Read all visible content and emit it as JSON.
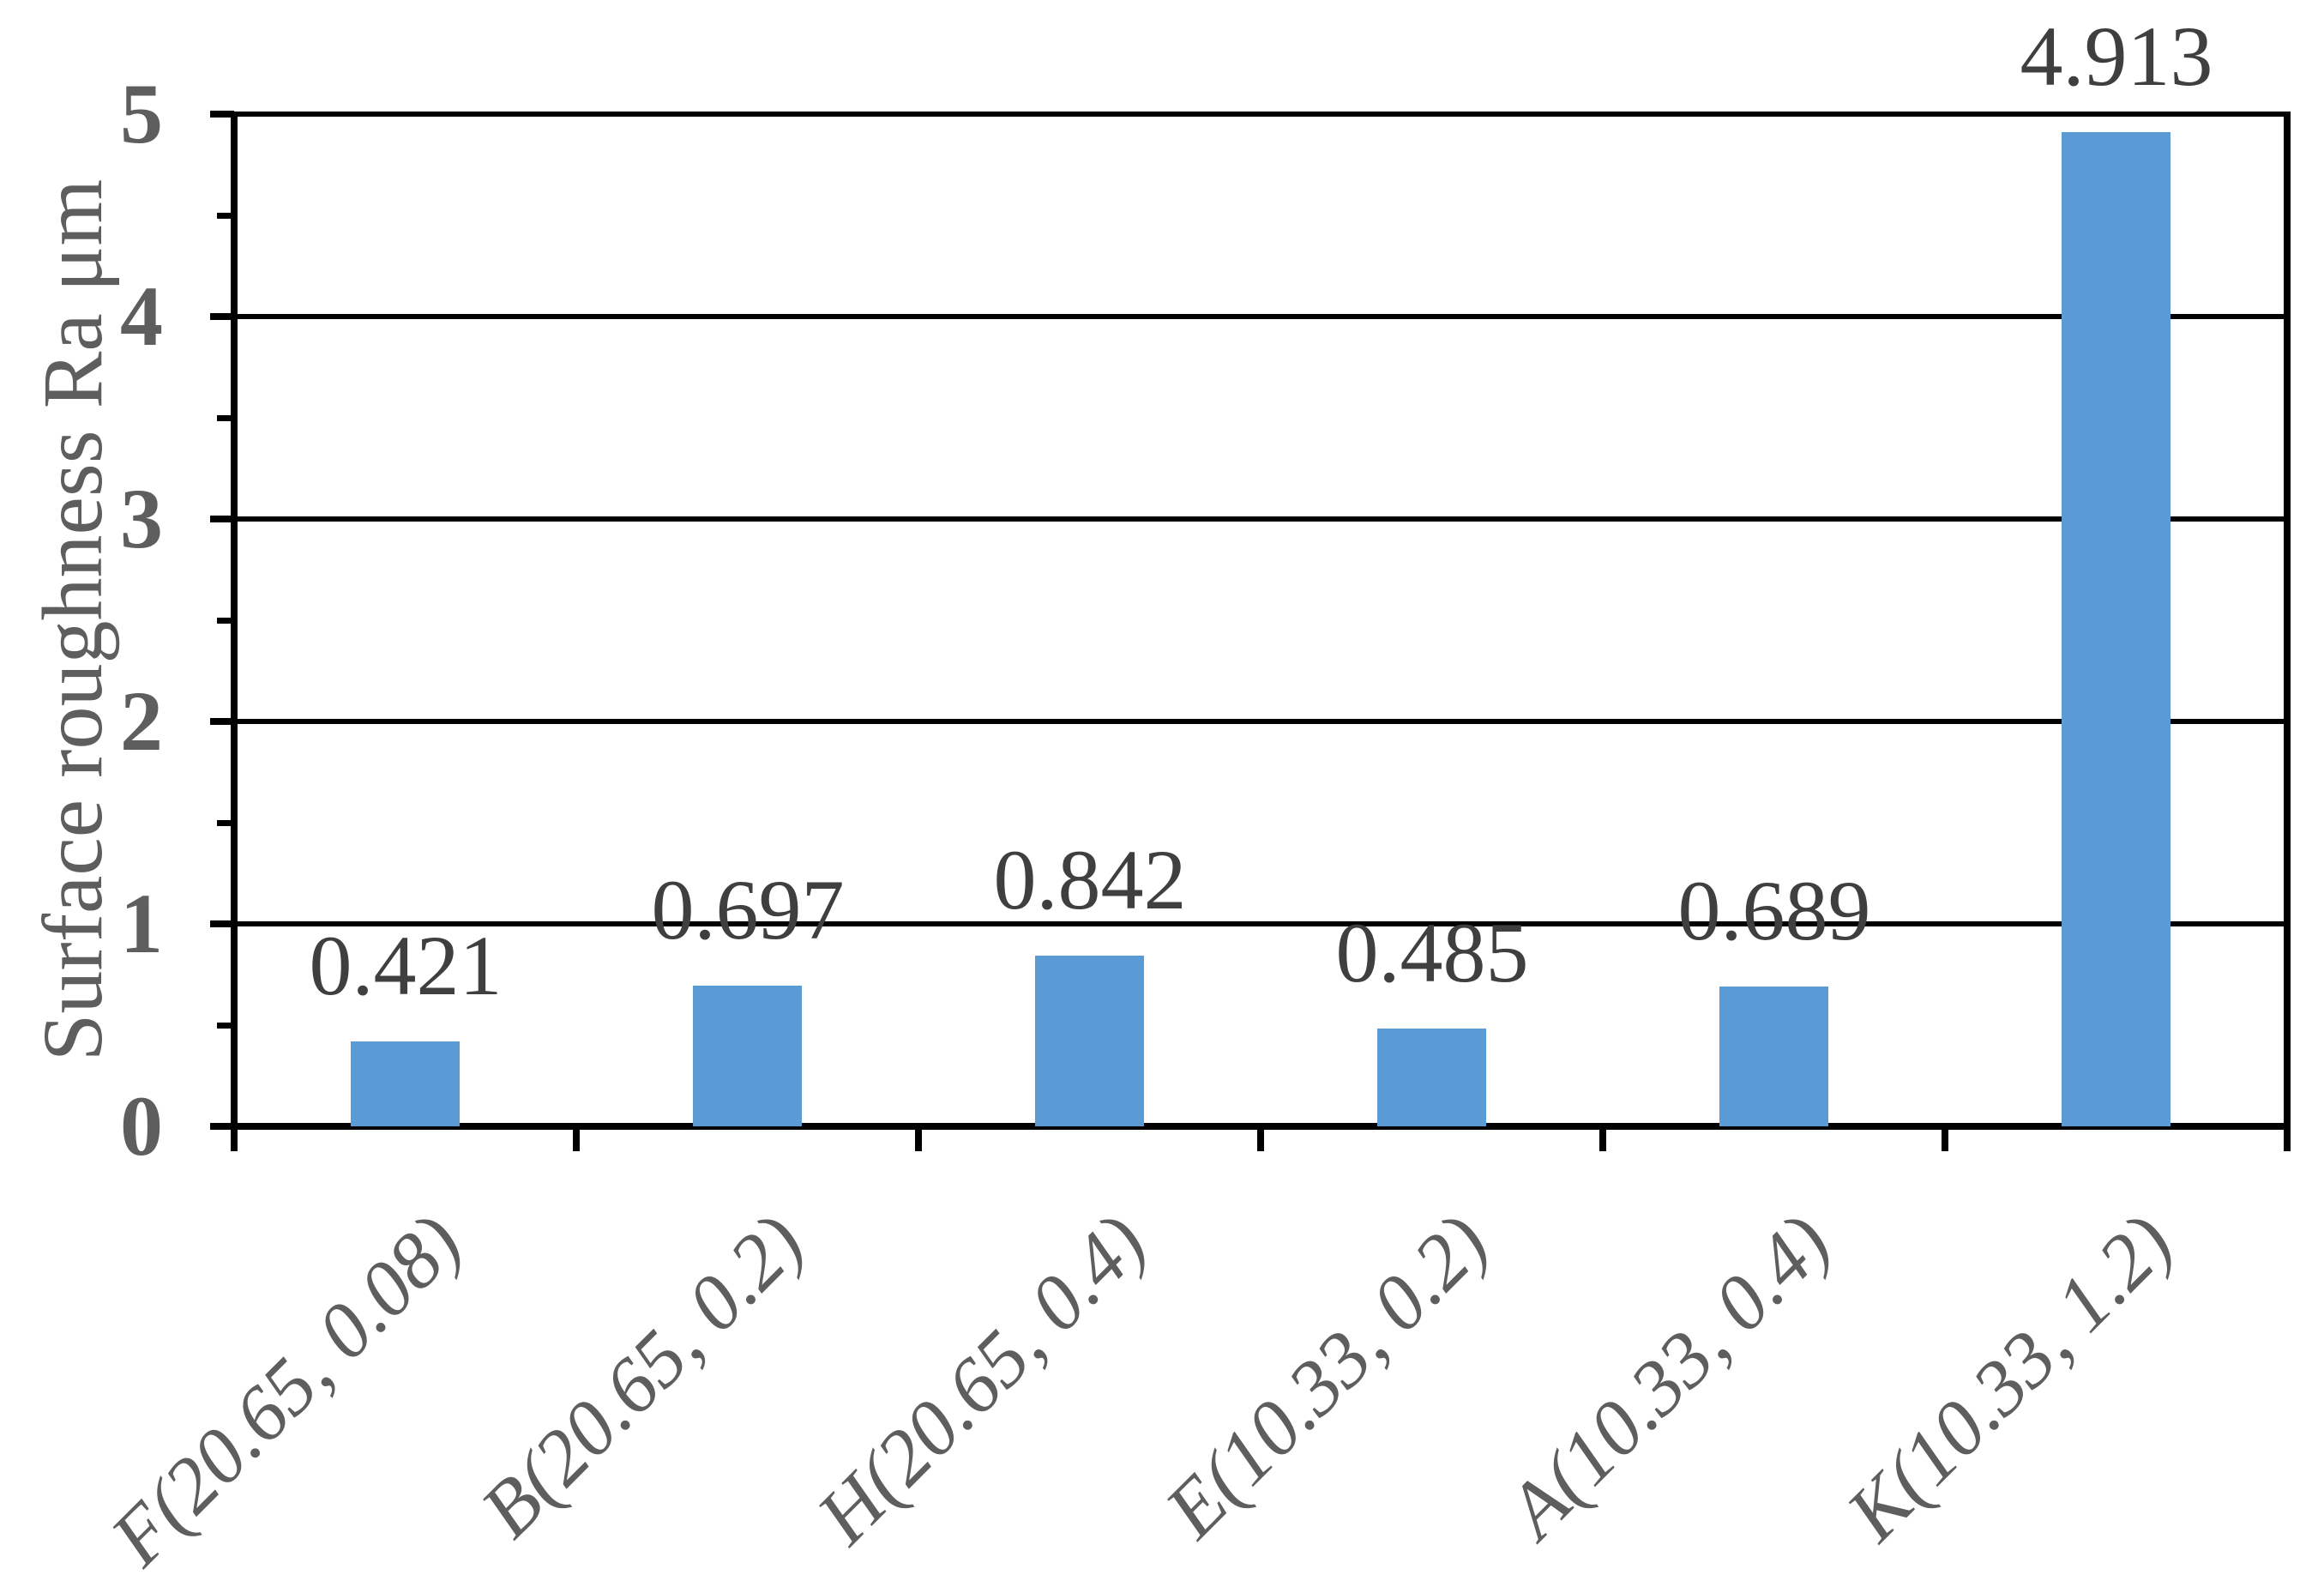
{
  "chart_data": {
    "type": "bar",
    "title": "",
    "xlabel": "",
    "ylabel": "Surface roughness Ra μm",
    "categories": [
      "F(20.65, 0.08)",
      "B(20.65, 0.2)",
      "H(20.65, 0.4)",
      "E(10.33, 0.2)",
      "A(10.33, 0.4)",
      "K(10.33, 1.2)"
    ],
    "values": [
      0.421,
      0.697,
      0.842,
      0.485,
      0.689,
      4.913
    ],
    "data_labels": [
      "0.421",
      "0.697",
      "0.842",
      "0.485",
      "0.689",
      "4.913"
    ],
    "yticks": [
      "0",
      "1",
      "2",
      "3",
      "4",
      "5"
    ],
    "ylim": [
      0,
      5
    ],
    "ytick_interval": 1,
    "yminor_tick_interval": 0.5,
    "grid": true,
    "legend": "none",
    "bar_color": "#5B9BD5",
    "data_label_color": "#3F3F3F",
    "axis_text_color": "#5E5E5E",
    "line_color": "#000000"
  }
}
